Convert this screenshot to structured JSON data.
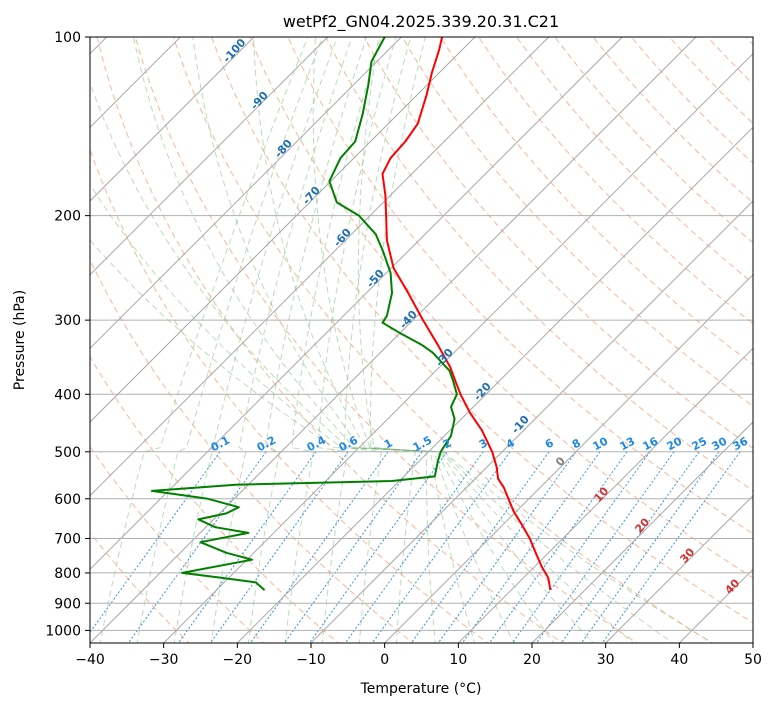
{
  "chart_data": {
    "type": "line",
    "title": "wetPf2_GN04.2025.339.20.31.C21",
    "xlabel": "Temperature (°C)",
    "ylabel": "Pressure (hPa)",
    "xlim": [
      -40,
      50
    ],
    "ylim": [
      1050,
      100
    ],
    "y_scale": "log",
    "x_ticks": [
      "−40",
      "−30",
      "−20",
      "−10",
      "0",
      "10",
      "20",
      "30",
      "40",
      "50"
    ],
    "y_ticks": [
      "100",
      "200",
      "300",
      "400",
      "500",
      "600",
      "700",
      "800",
      "900",
      "1000"
    ],
    "x_tick_values": [
      -40,
      -30,
      -20,
      -10,
      0,
      10,
      20,
      30,
      40,
      50
    ],
    "y_tick_values": [
      100,
      200,
      300,
      400,
      500,
      600,
      700,
      800,
      900,
      1000
    ],
    "grid": true,
    "series": [
      {
        "color": "#ff0000",
        "points": [
          [
            22.5,
            855
          ],
          [
            22.2,
            815
          ],
          [
            21.3,
            780
          ],
          [
            20.5,
            740
          ],
          [
            19.7,
            700
          ],
          [
            18.5,
            660
          ],
          [
            17.5,
            630
          ],
          [
            16.8,
            600
          ],
          [
            16.2,
            575
          ],
          [
            15.4,
            555
          ],
          [
            15.2,
            530
          ],
          [
            14.6,
            500
          ],
          [
            13.2,
            460
          ],
          [
            11.6,
            430
          ],
          [
            10.3,
            400
          ],
          [
            9.6,
            380
          ],
          [
            8.9,
            360
          ],
          [
            7.2,
            330
          ],
          [
            5.2,
            300
          ],
          [
            3.2,
            270
          ],
          [
            1.2,
            245
          ],
          [
            0.3,
            220
          ],
          [
            0.2,
            200
          ],
          [
            0.1,
            185
          ],
          [
            -0.3,
            170
          ],
          [
            0.8,
            160
          ],
          [
            2.8,
            150
          ],
          [
            4.5,
            140
          ],
          [
            5.7,
            125
          ],
          [
            6.4,
            115
          ],
          [
            7.4,
            105
          ],
          [
            7.8,
            100
          ]
        ]
      },
      {
        "color": "#008000",
        "points": [
          [
            -16.3,
            855
          ],
          [
            -17.5,
            830
          ],
          [
            -22.2,
            815
          ],
          [
            -27.5,
            800
          ],
          [
            -18.0,
            760
          ],
          [
            -21.5,
            740
          ],
          [
            -25.0,
            710
          ],
          [
            -18.5,
            685
          ],
          [
            -23.0,
            670
          ],
          [
            -25.3,
            650
          ],
          [
            -21.5,
            635
          ],
          [
            -19.8,
            620
          ],
          [
            -24.0,
            600
          ],
          [
            -31.6,
            582
          ],
          [
            -20.0,
            568
          ],
          [
            1.0,
            560
          ],
          [
            6.8,
            550
          ],
          [
            7.2,
            520
          ],
          [
            7.6,
            500
          ],
          [
            9.0,
            470
          ],
          [
            9.5,
            440
          ],
          [
            9.0,
            420
          ],
          [
            9.8,
            400
          ],
          [
            9.3,
            380
          ],
          [
            8.8,
            365
          ],
          [
            6.5,
            340
          ],
          [
            5.0,
            330
          ],
          [
            2.0,
            315
          ],
          [
            -0.3,
            303
          ],
          [
            0.3,
            295
          ],
          [
            1.0,
            270
          ],
          [
            0.8,
            250
          ],
          [
            -0.2,
            230
          ],
          [
            -1.2,
            215
          ],
          [
            -3.5,
            200
          ],
          [
            -6.5,
            190
          ],
          [
            -7.5,
            175
          ],
          [
            -6.0,
            160
          ],
          [
            -4.0,
            150
          ],
          [
            -3.0,
            135
          ],
          [
            -2.2,
            120
          ],
          [
            -1.8,
            110
          ],
          [
            0.0,
            100
          ]
        ]
      }
    ],
    "dry_adiabat_labels": [
      "-100",
      "-90",
      "-80",
      "-70",
      "-60",
      "-50",
      "-40",
      "-30",
      "-20",
      "-10"
    ],
    "moist_adiabat_labels": [
      "0",
      "10",
      "20",
      "30",
      "40"
    ],
    "mixing_ratio_labels": [
      "0.1",
      "0.2",
      "0.4",
      "0.6",
      "1",
      "1.5",
      "2",
      "3",
      "4",
      "6",
      "8",
      "10",
      "13",
      "16",
      "20",
      "25",
      "30",
      "36"
    ]
  }
}
